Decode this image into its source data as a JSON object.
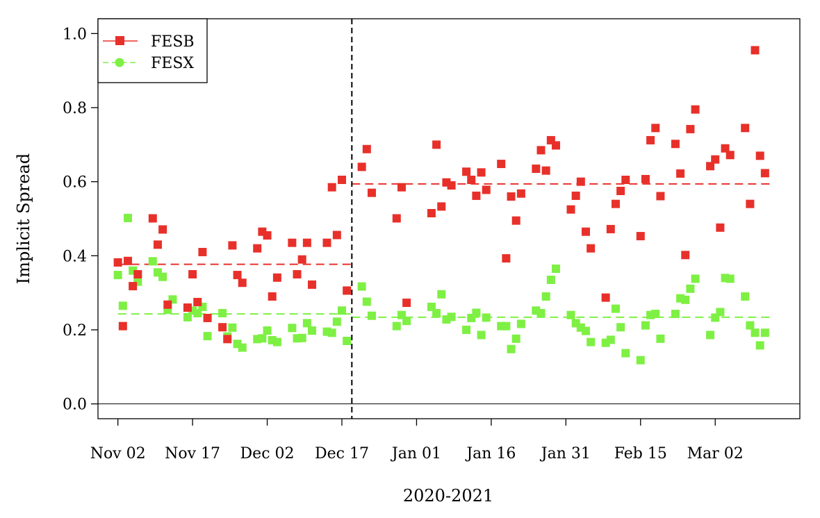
{
  "chart_data": {
    "type": "scatter",
    "title": "",
    "xlabel": "2020-2021",
    "ylabel": "Implicit Spread",
    "ylim": [
      -0.04,
      1.04
    ],
    "xlim": [
      "2020-10-29",
      "2021-03-19"
    ],
    "x_ticks": [
      "2020-11-02",
      "2020-11-17",
      "2020-12-02",
      "2020-12-17",
      "2021-01-01",
      "2021-01-16",
      "2021-01-31",
      "2021-02-15",
      "2021-03-02"
    ],
    "x_tick_labels": [
      "Nov 02",
      "Nov 17",
      "Dec 02",
      "Dec 17",
      "Jan 01",
      "Jan 16",
      "Jan 31",
      "Feb 15",
      "Mar 02"
    ],
    "y_ticks": [
      0.0,
      0.2,
      0.4,
      0.6,
      0.8,
      1.0
    ],
    "y_tick_labels": [
      "0.0",
      "0.2",
      "0.4",
      "0.6",
      "0.8",
      "1.0"
    ],
    "grid": false,
    "legend_position": "top-left",
    "zero_line": true,
    "break_date": "2020-12-19",
    "colors": {
      "FESB": "#e8302a",
      "FESX": "#7ef044",
      "break_line": "#000000"
    },
    "series": [
      {
        "name": "FESB",
        "means": [
          {
            "from": "2020-11-02",
            "to": "2020-12-19",
            "value": 0.377
          },
          {
            "from": "2020-12-19",
            "to": "2021-03-13",
            "value": 0.594
          }
        ],
        "points": [
          [
            "2020-11-02",
            0.382
          ],
          [
            "2020-11-03",
            0.21
          ],
          [
            "2020-11-04",
            0.386
          ],
          [
            "2020-11-05",
            0.318
          ],
          [
            "2020-11-06",
            0.35
          ],
          [
            "2020-11-09",
            0.501
          ],
          [
            "2020-11-10",
            0.43
          ],
          [
            "2020-11-11",
            0.471
          ],
          [
            "2020-11-12",
            0.268
          ],
          [
            "2020-11-16",
            0.26
          ],
          [
            "2020-11-17",
            0.35
          ],
          [
            "2020-11-18",
            0.275
          ],
          [
            "2020-11-19",
            0.41
          ],
          [
            "2020-11-20",
            0.232
          ],
          [
            "2020-11-23",
            0.207
          ],
          [
            "2020-11-24",
            0.175
          ],
          [
            "2020-11-25",
            0.428
          ],
          [
            "2020-11-26",
            0.348
          ],
          [
            "2020-11-27",
            0.327
          ],
          [
            "2020-11-30",
            0.42
          ],
          [
            "2020-12-01",
            0.465
          ],
          [
            "2020-12-02",
            0.455
          ],
          [
            "2020-12-03",
            0.29
          ],
          [
            "2020-12-04",
            0.341
          ],
          [
            "2020-12-07",
            0.435
          ],
          [
            "2020-12-08",
            0.35
          ],
          [
            "2020-12-09",
            0.39
          ],
          [
            "2020-12-10",
            0.435
          ],
          [
            "2020-12-11",
            0.322
          ],
          [
            "2020-12-14",
            0.435
          ],
          [
            "2020-12-15",
            0.585
          ],
          [
            "2020-12-16",
            0.456
          ],
          [
            "2020-12-17",
            0.605
          ],
          [
            "2020-12-18",
            0.306
          ],
          [
            "2020-12-21",
            0.64
          ],
          [
            "2020-12-22",
            0.688
          ],
          [
            "2020-12-23",
            0.57
          ],
          [
            "2020-12-28",
            0.501
          ],
          [
            "2020-12-29",
            0.585
          ],
          [
            "2020-12-30",
            0.273
          ],
          [
            "2021-01-04",
            0.515
          ],
          [
            "2021-01-05",
            0.7
          ],
          [
            "2021-01-06",
            0.533
          ],
          [
            "2021-01-07",
            0.598
          ],
          [
            "2021-01-08",
            0.59
          ],
          [
            "2021-01-11",
            0.627
          ],
          [
            "2021-01-12",
            0.605
          ],
          [
            "2021-01-13",
            0.562
          ],
          [
            "2021-01-14",
            0.625
          ],
          [
            "2021-01-15",
            0.578
          ],
          [
            "2021-01-18",
            0.648
          ],
          [
            "2021-01-19",
            0.393
          ],
          [
            "2021-01-20",
            0.56
          ],
          [
            "2021-01-21",
            0.495
          ],
          [
            "2021-01-22",
            0.568
          ],
          [
            "2021-01-25",
            0.635
          ],
          [
            "2021-01-26",
            0.685
          ],
          [
            "2021-01-27",
            0.63
          ],
          [
            "2021-01-28",
            0.712
          ],
          [
            "2021-01-29",
            0.698
          ],
          [
            "2021-02-01",
            0.525
          ],
          [
            "2021-02-02",
            0.562
          ],
          [
            "2021-02-03",
            0.6
          ],
          [
            "2021-02-04",
            0.465
          ],
          [
            "2021-02-05",
            0.42
          ],
          [
            "2021-02-08",
            0.287
          ],
          [
            "2021-02-09",
            0.472
          ],
          [
            "2021-02-10",
            0.54
          ],
          [
            "2021-02-11",
            0.575
          ],
          [
            "2021-02-12",
            0.605
          ],
          [
            "2021-02-15",
            0.453
          ],
          [
            "2021-02-16",
            0.607
          ],
          [
            "2021-02-17",
            0.712
          ],
          [
            "2021-02-18",
            0.745
          ],
          [
            "2021-02-19",
            0.561
          ],
          [
            "2021-02-22",
            0.702
          ],
          [
            "2021-02-23",
            0.622
          ],
          [
            "2021-02-24",
            0.402
          ],
          [
            "2021-02-25",
            0.742
          ],
          [
            "2021-02-26",
            0.795
          ],
          [
            "2021-03-01",
            0.642
          ],
          [
            "2021-03-02",
            0.66
          ],
          [
            "2021-03-03",
            0.476
          ],
          [
            "2021-03-04",
            0.69
          ],
          [
            "2021-03-05",
            0.672
          ],
          [
            "2021-03-08",
            0.745
          ],
          [
            "2021-03-09",
            0.54
          ],
          [
            "2021-03-10",
            0.955
          ],
          [
            "2021-03-11",
            0.67
          ],
          [
            "2021-03-12",
            0.623
          ]
        ]
      },
      {
        "name": "FESX",
        "means": [
          {
            "from": "2020-11-02",
            "to": "2020-12-19",
            "value": 0.243
          },
          {
            "from": "2020-12-19",
            "to": "2021-03-13",
            "value": 0.234
          }
        ],
        "points": [
          [
            "2020-11-02",
            0.348
          ],
          [
            "2020-11-03",
            0.265
          ],
          [
            "2020-11-04",
            0.502
          ],
          [
            "2020-11-05",
            0.36
          ],
          [
            "2020-11-06",
            0.33
          ],
          [
            "2020-11-09",
            0.385
          ],
          [
            "2020-11-10",
            0.355
          ],
          [
            "2020-11-11",
            0.343
          ],
          [
            "2020-11-12",
            0.254
          ],
          [
            "2020-11-13",
            0.282
          ],
          [
            "2020-11-16",
            0.234
          ],
          [
            "2020-11-17",
            0.252
          ],
          [
            "2020-11-18",
            0.245
          ],
          [
            "2020-11-19",
            0.262
          ],
          [
            "2020-11-20",
            0.183
          ],
          [
            "2020-11-23",
            0.245
          ],
          [
            "2020-11-24",
            0.182
          ],
          [
            "2020-11-25",
            0.206
          ],
          [
            "2020-11-26",
            0.162
          ],
          [
            "2020-11-27",
            0.152
          ],
          [
            "2020-11-30",
            0.175
          ],
          [
            "2020-12-01",
            0.177
          ],
          [
            "2020-12-02",
            0.198
          ],
          [
            "2020-12-03",
            0.172
          ],
          [
            "2020-12-04",
            0.167
          ],
          [
            "2020-12-07",
            0.205
          ],
          [
            "2020-12-08",
            0.177
          ],
          [
            "2020-12-09",
            0.178
          ],
          [
            "2020-12-10",
            0.218
          ],
          [
            "2020-12-11",
            0.198
          ],
          [
            "2020-12-14",
            0.195
          ],
          [
            "2020-12-15",
            0.192
          ],
          [
            "2020-12-16",
            0.222
          ],
          [
            "2020-12-17",
            0.252
          ],
          [
            "2020-12-18",
            0.17
          ],
          [
            "2020-12-21",
            0.317
          ],
          [
            "2020-12-22",
            0.276
          ],
          [
            "2020-12-23",
            0.238
          ],
          [
            "2020-12-28",
            0.21
          ],
          [
            "2020-12-29",
            0.24
          ],
          [
            "2020-12-30",
            0.224
          ],
          [
            "2021-01-04",
            0.262
          ],
          [
            "2021-01-05",
            0.245
          ],
          [
            "2021-01-06",
            0.296
          ],
          [
            "2021-01-07",
            0.228
          ],
          [
            "2021-01-08",
            0.235
          ],
          [
            "2021-01-11",
            0.2
          ],
          [
            "2021-01-12",
            0.232
          ],
          [
            "2021-01-13",
            0.246
          ],
          [
            "2021-01-14",
            0.186
          ],
          [
            "2021-01-15",
            0.233
          ],
          [
            "2021-01-18",
            0.21
          ],
          [
            "2021-01-19",
            0.21
          ],
          [
            "2021-01-20",
            0.148
          ],
          [
            "2021-01-21",
            0.176
          ],
          [
            "2021-01-22",
            0.216
          ],
          [
            "2021-01-25",
            0.252
          ],
          [
            "2021-01-26",
            0.245
          ],
          [
            "2021-01-27",
            0.29
          ],
          [
            "2021-01-28",
            0.335
          ],
          [
            "2021-01-29",
            0.365
          ],
          [
            "2021-02-01",
            0.24
          ],
          [
            "2021-02-02",
            0.218
          ],
          [
            "2021-02-03",
            0.206
          ],
          [
            "2021-02-04",
            0.197
          ],
          [
            "2021-02-05",
            0.167
          ],
          [
            "2021-02-08",
            0.165
          ],
          [
            "2021-02-09",
            0.173
          ],
          [
            "2021-02-10",
            0.257
          ],
          [
            "2021-02-11",
            0.207
          ],
          [
            "2021-02-12",
            0.137
          ],
          [
            "2021-02-15",
            0.118
          ],
          [
            "2021-02-16",
            0.212
          ],
          [
            "2021-02-17",
            0.24
          ],
          [
            "2021-02-18",
            0.243
          ],
          [
            "2021-02-19",
            0.176
          ],
          [
            "2021-02-22",
            0.243
          ],
          [
            "2021-02-23",
            0.285
          ],
          [
            "2021-02-24",
            0.281
          ],
          [
            "2021-02-25",
            0.311
          ],
          [
            "2021-02-26",
            0.338
          ],
          [
            "2021-03-01",
            0.186
          ],
          [
            "2021-03-02",
            0.233
          ],
          [
            "2021-03-03",
            0.248
          ],
          [
            "2021-03-04",
            0.34
          ],
          [
            "2021-03-05",
            0.338
          ],
          [
            "2021-03-08",
            0.29
          ],
          [
            "2021-03-09",
            0.212
          ],
          [
            "2021-03-10",
            0.192
          ],
          [
            "2021-03-11",
            0.158
          ],
          [
            "2021-03-12",
            0.192
          ]
        ]
      }
    ]
  }
}
